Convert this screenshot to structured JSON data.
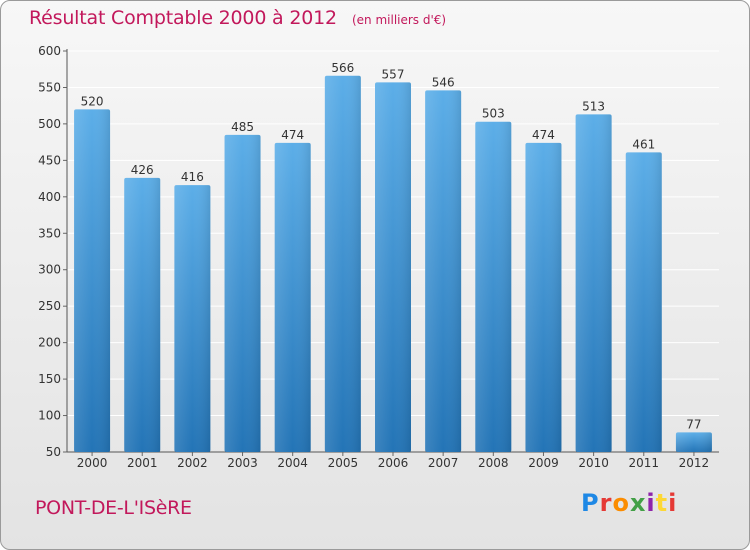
{
  "header": {
    "title": "Résultat Comptable 2000 à 2012",
    "unit": "(en milliers d'€)"
  },
  "footer": {
    "commune": "PONT-DE-L'ISèRE",
    "logo_letters": [
      "P",
      "r",
      "o",
      "x",
      "i",
      "t",
      "i"
    ],
    "logo_colors": [
      "#1e88e5",
      "#e53935",
      "#fb8c00",
      "#43a047",
      "#8e24aa",
      "#fdd835",
      "#e53935"
    ]
  },
  "colors": {
    "bar_top": "#5caee8",
    "bar_bottom": "#2374b6",
    "grid": "#ffffff",
    "text": "#333333",
    "accent": "#c2185b"
  },
  "chart_data": {
    "type": "bar",
    "categories": [
      "2000",
      "2001",
      "2002",
      "2003",
      "2004",
      "2005",
      "2006",
      "2007",
      "2008",
      "2009",
      "2010",
      "2011",
      "2012"
    ],
    "values": [
      520,
      426,
      416,
      485,
      474,
      566,
      557,
      546,
      503,
      474,
      513,
      461,
      77
    ],
    "ylim": [
      50,
      600
    ],
    "yticks": [
      50,
      100,
      150,
      200,
      250,
      300,
      350,
      400,
      450,
      500,
      550,
      600
    ],
    "grid": true,
    "data_labels": true
  }
}
